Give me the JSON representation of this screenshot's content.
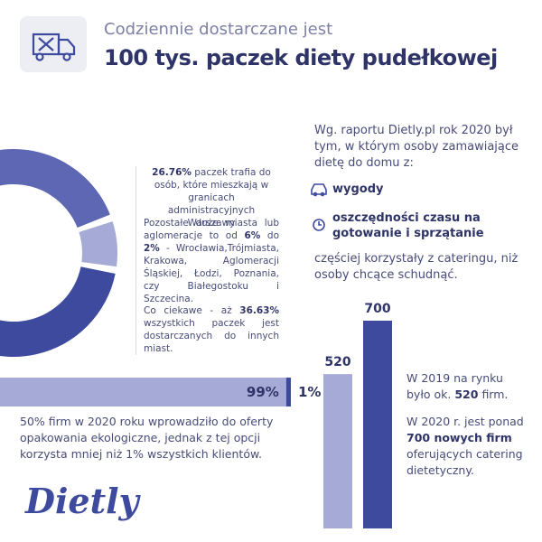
{
  "header": {
    "subtitle": "Codziennie dostarczane jest",
    "title": "100 tys. paczek diety pudełkowej"
  },
  "chart_data": [
    {
      "type": "donut",
      "values": [
        26.76,
        7,
        36.63
      ],
      "value_labels": [
        "26.76%",
        null,
        "36.63%"
      ],
      "colors": [
        "#5d67b3",
        "#a5aad6",
        "#3d4a9e"
      ]
    },
    {
      "type": "hbar-stacked",
      "series": [
        {
          "color": "#a5aad6",
          "values": [
            99
          ],
          "value_labels": [
            "99%"
          ]
        },
        {
          "color": "#3d4a9e",
          "values": [
            1
          ],
          "value_labels": [
            "1%"
          ]
        }
      ]
    },
    {
      "type": "column",
      "values": [
        520,
        700
      ],
      "colors": [
        "#a5aad6",
        "#3d4a9e"
      ]
    }
  ],
  "donut_notes": [
    [
      "paczek trafia do osób, które mieszkają w granicach administracyjnych Warszawy"
    ],
    [
      "Pozostałe duże miasta lub aglomeracje to od",
      "6%",
      "do",
      "2%",
      "- Wrocławia,Trójmiasta, Krakowa, Aglomeracji Śląskiej, Łodzi, Poznania, czy Białegostoku i Szczecina."
    ],
    [
      "Co ciekawe - aż",
      "wszystkich paczek jest dostarczanych do innych miast."
    ]
  ],
  "survey": {
    "intro": "Wg. raportu Dietly.pl rok 2020 był tym, w którym osoby zamawiające dietę do domu z:",
    "reasons": [
      "wygody",
      "oszczędności czasu na gotowanie i sprzątanie"
    ],
    "conclusion": "częściej korzystały z cateringu, niż osoby chcące schudnąć."
  },
  "eco_note": "50% firm w 2020 roku wprowadziło do oferty opakowania ekologiczne, jednak z tej opcji korzysta mniej niż 1% wszystkich klientów.",
  "market_notes": {
    "y2019": [
      "W 2019 na rynku było ok.",
      "firm."
    ],
    "y2020": [
      "W 2020 r. jest ponad",
      "700 nowych firm",
      "oferujących catering dietetyczny."
    ]
  },
  "logo": "Dietly"
}
